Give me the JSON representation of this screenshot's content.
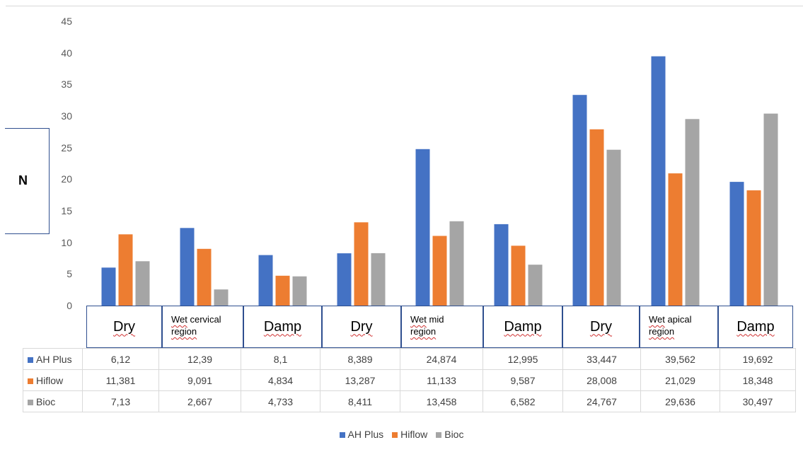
{
  "chart_data": {
    "type": "bar",
    "title": "",
    "ylabel": "N",
    "xlabel": "",
    "ylim": [
      0,
      45
    ],
    "yticks": [
      0,
      5,
      10,
      15,
      20,
      25,
      30,
      35,
      40,
      45
    ],
    "grid": false,
    "legend_position": "bottom",
    "categories": [
      "Dry",
      "Wet cervical region",
      "Damp",
      "Dry",
      "Wet mid region",
      "Damp",
      "Dry",
      "Wet apical region",
      "Damp"
    ],
    "series": [
      {
        "name": "AH Plus",
        "color": "#4472c4",
        "values": [
          6.12,
          12.39,
          8.1,
          8.389,
          24.874,
          12.995,
          33.447,
          39.562,
          19.692
        ],
        "labels": [
          "6,12",
          "12,39",
          "8,1",
          "8,389",
          "24,874",
          "12,995",
          "33,447",
          "39,562",
          "19,692"
        ]
      },
      {
        "name": "Hiflow",
        "color": "#ed7d31",
        "values": [
          11.381,
          9.091,
          4.834,
          13.287,
          11.133,
          9.587,
          28.008,
          21.029,
          18.348
        ],
        "labels": [
          "11,381",
          "9,091",
          "4,834",
          "13,287",
          "11,133",
          "9,587",
          "28,008",
          "21,029",
          "18,348"
        ]
      },
      {
        "name": "Bioc",
        "color": "#a5a5a5",
        "values": [
          7.13,
          2.667,
          4.733,
          8.411,
          13.458,
          6.582,
          24.767,
          29.636,
          30.497
        ],
        "labels": [
          "7,13",
          "2,667",
          "4,733",
          "8,411",
          "13,458",
          "6,582",
          "24,767",
          "29,636",
          "30,497"
        ]
      }
    ]
  }
}
